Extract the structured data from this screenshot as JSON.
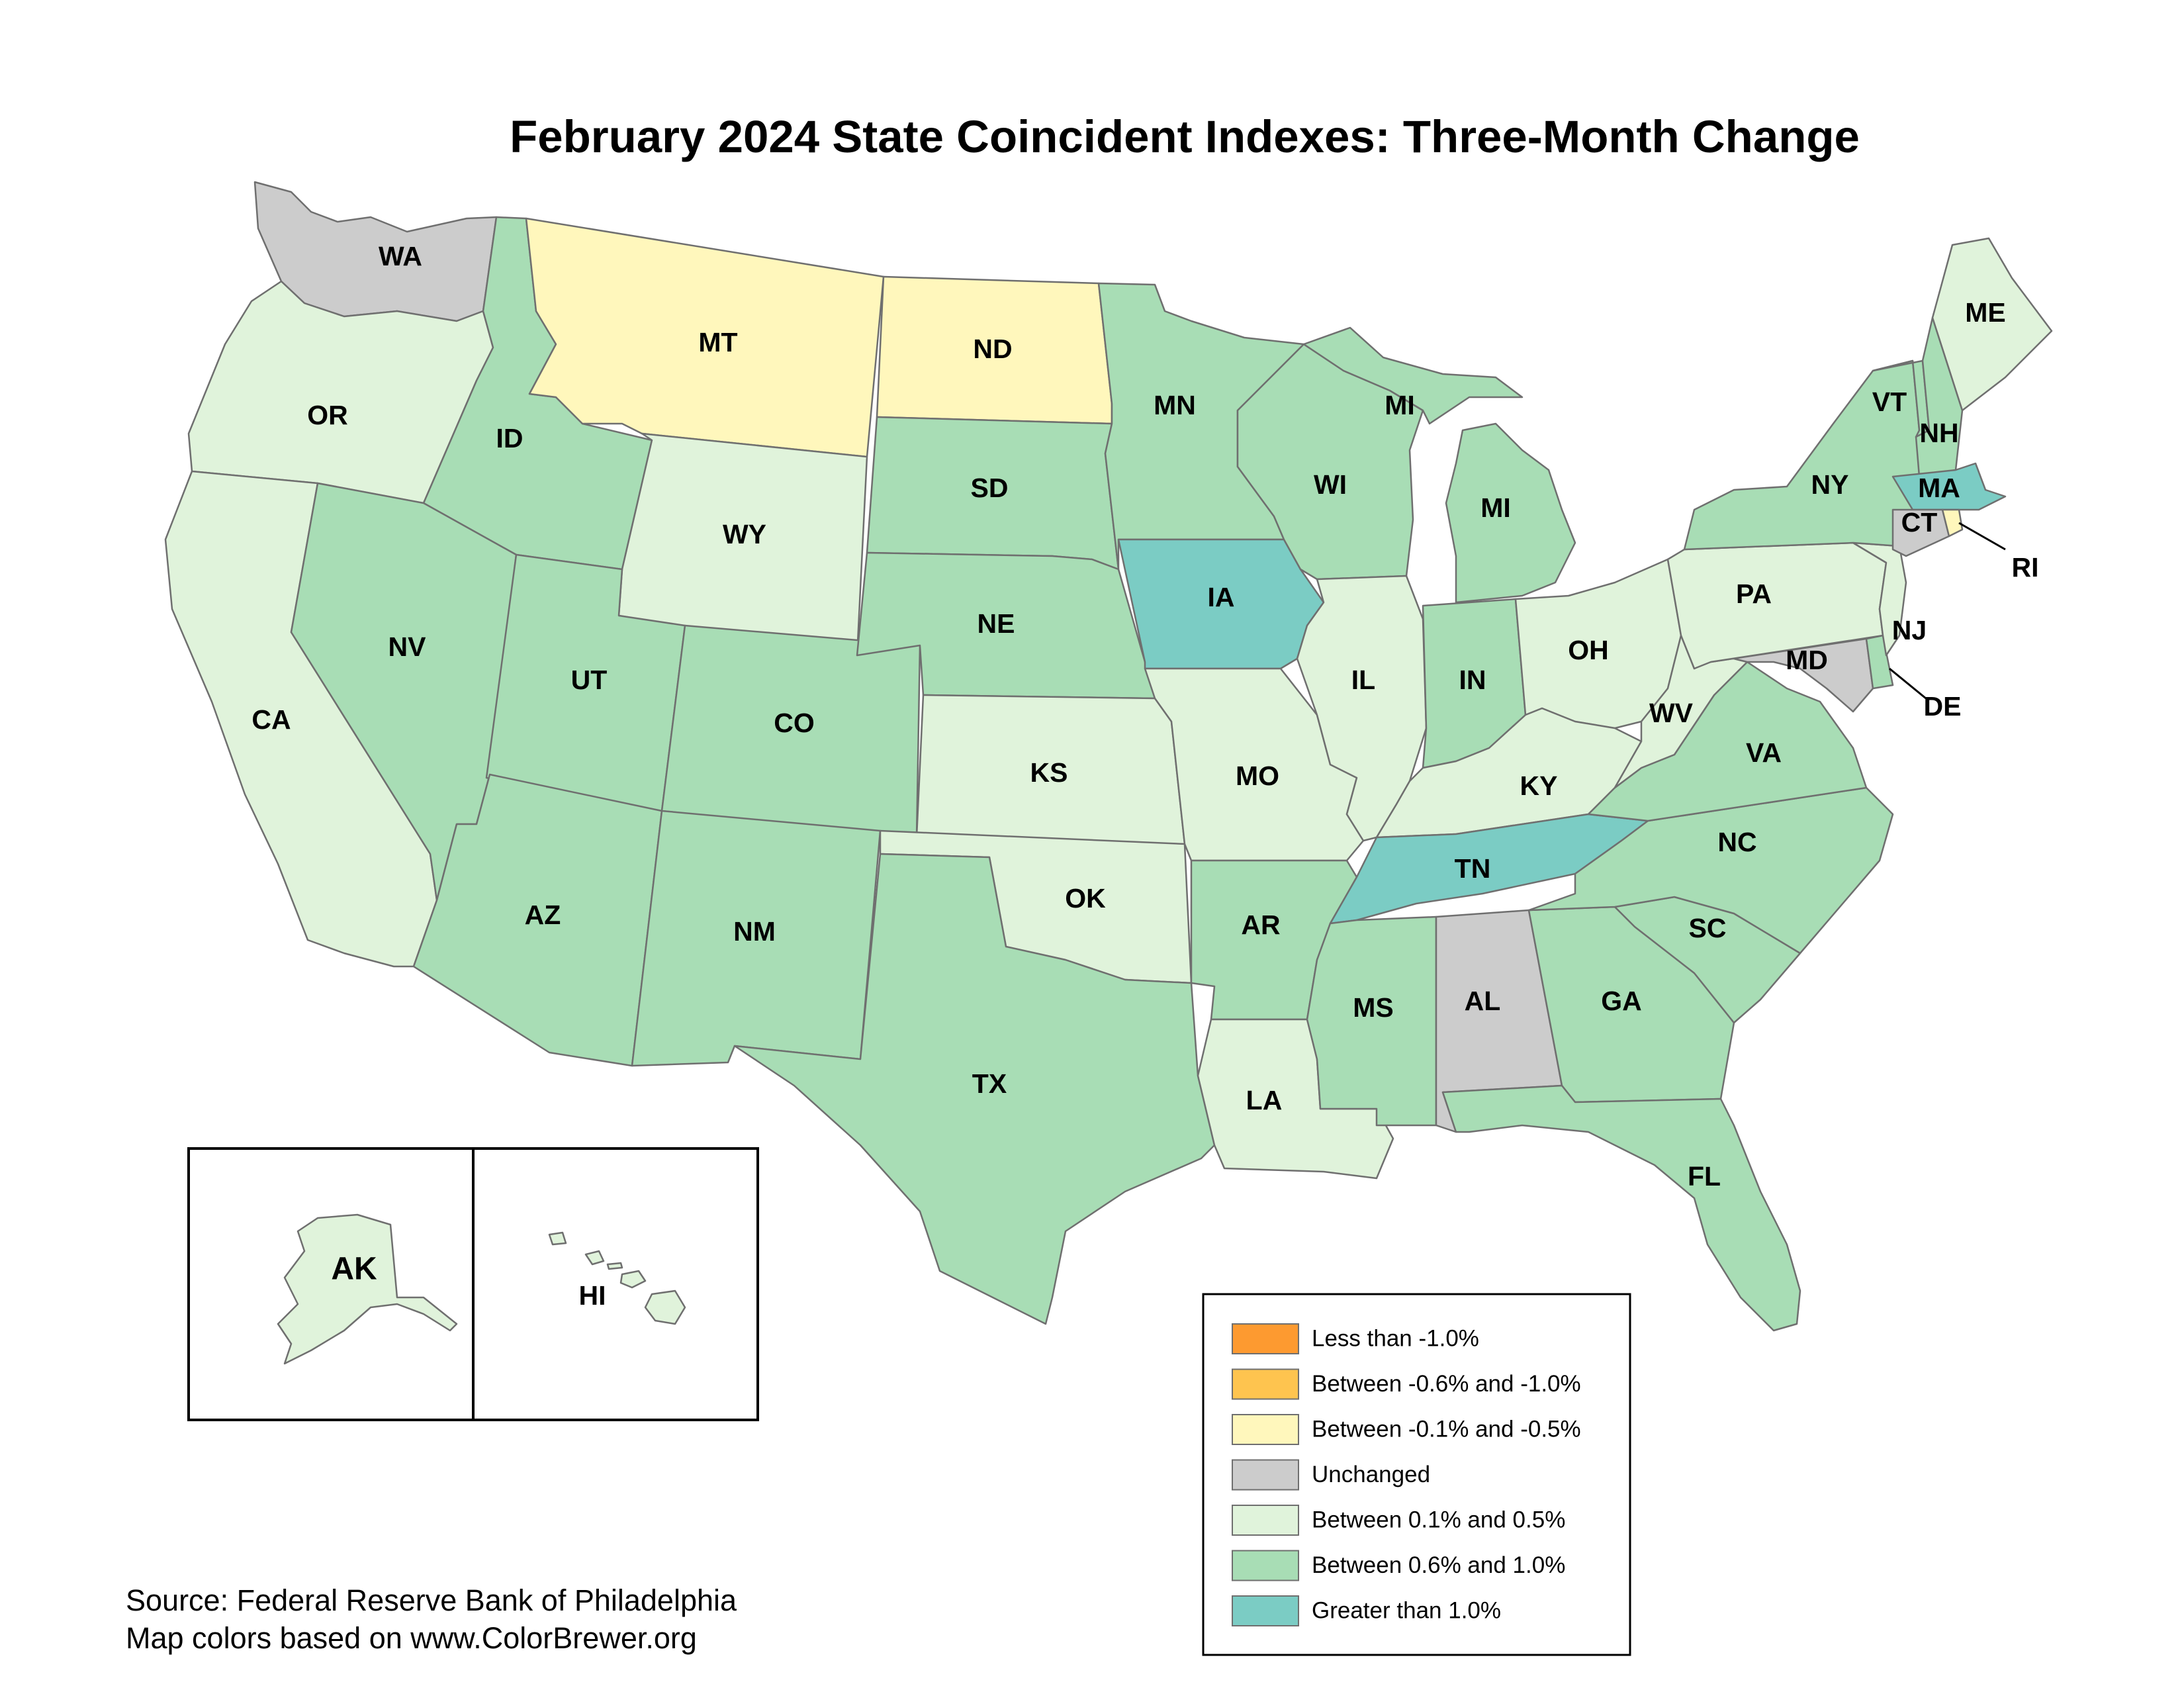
{
  "title": "February 2024 State Coincident Indexes: Three-Month Change",
  "legend": [
    {
      "key": "lt_neg1",
      "label": "Less than -1.0%",
      "color": "#fd9a30"
    },
    {
      "key": "neg06_neg10",
      "label": "Between -0.6% and -1.0%",
      "color": "#fec44f"
    },
    {
      "key": "neg01_neg05",
      "label": "Between -0.1% and -0.5%",
      "color": "#fff7bc"
    },
    {
      "key": "unchanged",
      "label": "Unchanged",
      "color": "#cccccc"
    },
    {
      "key": "pos01_05",
      "label": "Between 0.1% and 0.5%",
      "color": "#e0f3db"
    },
    {
      "key": "pos06_10",
      "label": "Between 0.6% and 1.0%",
      "color": "#a8ddb5"
    },
    {
      "key": "gt1",
      "label": "Greater than 1.0%",
      "color": "#7bccc4"
    }
  ],
  "states": [
    {
      "abbr": "WA",
      "category": "unchanged"
    },
    {
      "abbr": "OR",
      "category": "pos01_05"
    },
    {
      "abbr": "CA",
      "category": "pos01_05"
    },
    {
      "abbr": "ID",
      "category": "pos06_10"
    },
    {
      "abbr": "NV",
      "category": "pos06_10"
    },
    {
      "abbr": "MT",
      "category": "neg01_neg05"
    },
    {
      "abbr": "WY",
      "category": "pos01_05"
    },
    {
      "abbr": "UT",
      "category": "pos06_10"
    },
    {
      "abbr": "AZ",
      "category": "pos06_10"
    },
    {
      "abbr": "CO",
      "category": "pos06_10"
    },
    {
      "abbr": "NM",
      "category": "pos06_10"
    },
    {
      "abbr": "ND",
      "category": "neg01_neg05"
    },
    {
      "abbr": "SD",
      "category": "pos06_10"
    },
    {
      "abbr": "NE",
      "category": "pos06_10"
    },
    {
      "abbr": "KS",
      "category": "pos01_05"
    },
    {
      "abbr": "OK",
      "category": "pos01_05"
    },
    {
      "abbr": "TX",
      "category": "pos06_10"
    },
    {
      "abbr": "MN",
      "category": "pos06_10"
    },
    {
      "abbr": "IA",
      "category": "gt1"
    },
    {
      "abbr": "MO",
      "category": "pos01_05"
    },
    {
      "abbr": "AR",
      "category": "pos06_10"
    },
    {
      "abbr": "LA",
      "category": "pos01_05"
    },
    {
      "abbr": "WI",
      "category": "pos06_10"
    },
    {
      "abbr": "IL",
      "category": "pos01_05"
    },
    {
      "abbr": "MI",
      "category": "pos06_10"
    },
    {
      "abbr": "IN",
      "category": "pos06_10"
    },
    {
      "abbr": "OH",
      "category": "pos01_05"
    },
    {
      "abbr": "KY",
      "category": "pos01_05"
    },
    {
      "abbr": "TN",
      "category": "gt1"
    },
    {
      "abbr": "MS",
      "category": "pos06_10"
    },
    {
      "abbr": "AL",
      "category": "unchanged"
    },
    {
      "abbr": "GA",
      "category": "pos06_10"
    },
    {
      "abbr": "FL",
      "category": "pos06_10"
    },
    {
      "abbr": "SC",
      "category": "pos06_10"
    },
    {
      "abbr": "NC",
      "category": "pos06_10"
    },
    {
      "abbr": "VA",
      "category": "pos06_10"
    },
    {
      "abbr": "WV",
      "category": "pos01_05"
    },
    {
      "abbr": "PA",
      "category": "pos01_05"
    },
    {
      "abbr": "NY",
      "category": "pos06_10"
    },
    {
      "abbr": "NJ",
      "category": "pos01_05"
    },
    {
      "abbr": "DE",
      "category": "pos06_10"
    },
    {
      "abbr": "MD",
      "category": "unchanged"
    },
    {
      "abbr": "CT",
      "category": "unchanged"
    },
    {
      "abbr": "RI",
      "category": "neg01_neg05"
    },
    {
      "abbr": "MA",
      "category": "gt1"
    },
    {
      "abbr": "VT",
      "category": "pos06_10"
    },
    {
      "abbr": "NH",
      "category": "pos06_10"
    },
    {
      "abbr": "ME",
      "category": "pos01_05"
    },
    {
      "abbr": "AK",
      "category": "pos01_05"
    },
    {
      "abbr": "HI",
      "category": "pos01_05"
    }
  ],
  "source": {
    "line1": "Source: Federal Reserve Bank of Philadelphia",
    "line2": "Map colors based on www.ColorBrewer.org"
  }
}
